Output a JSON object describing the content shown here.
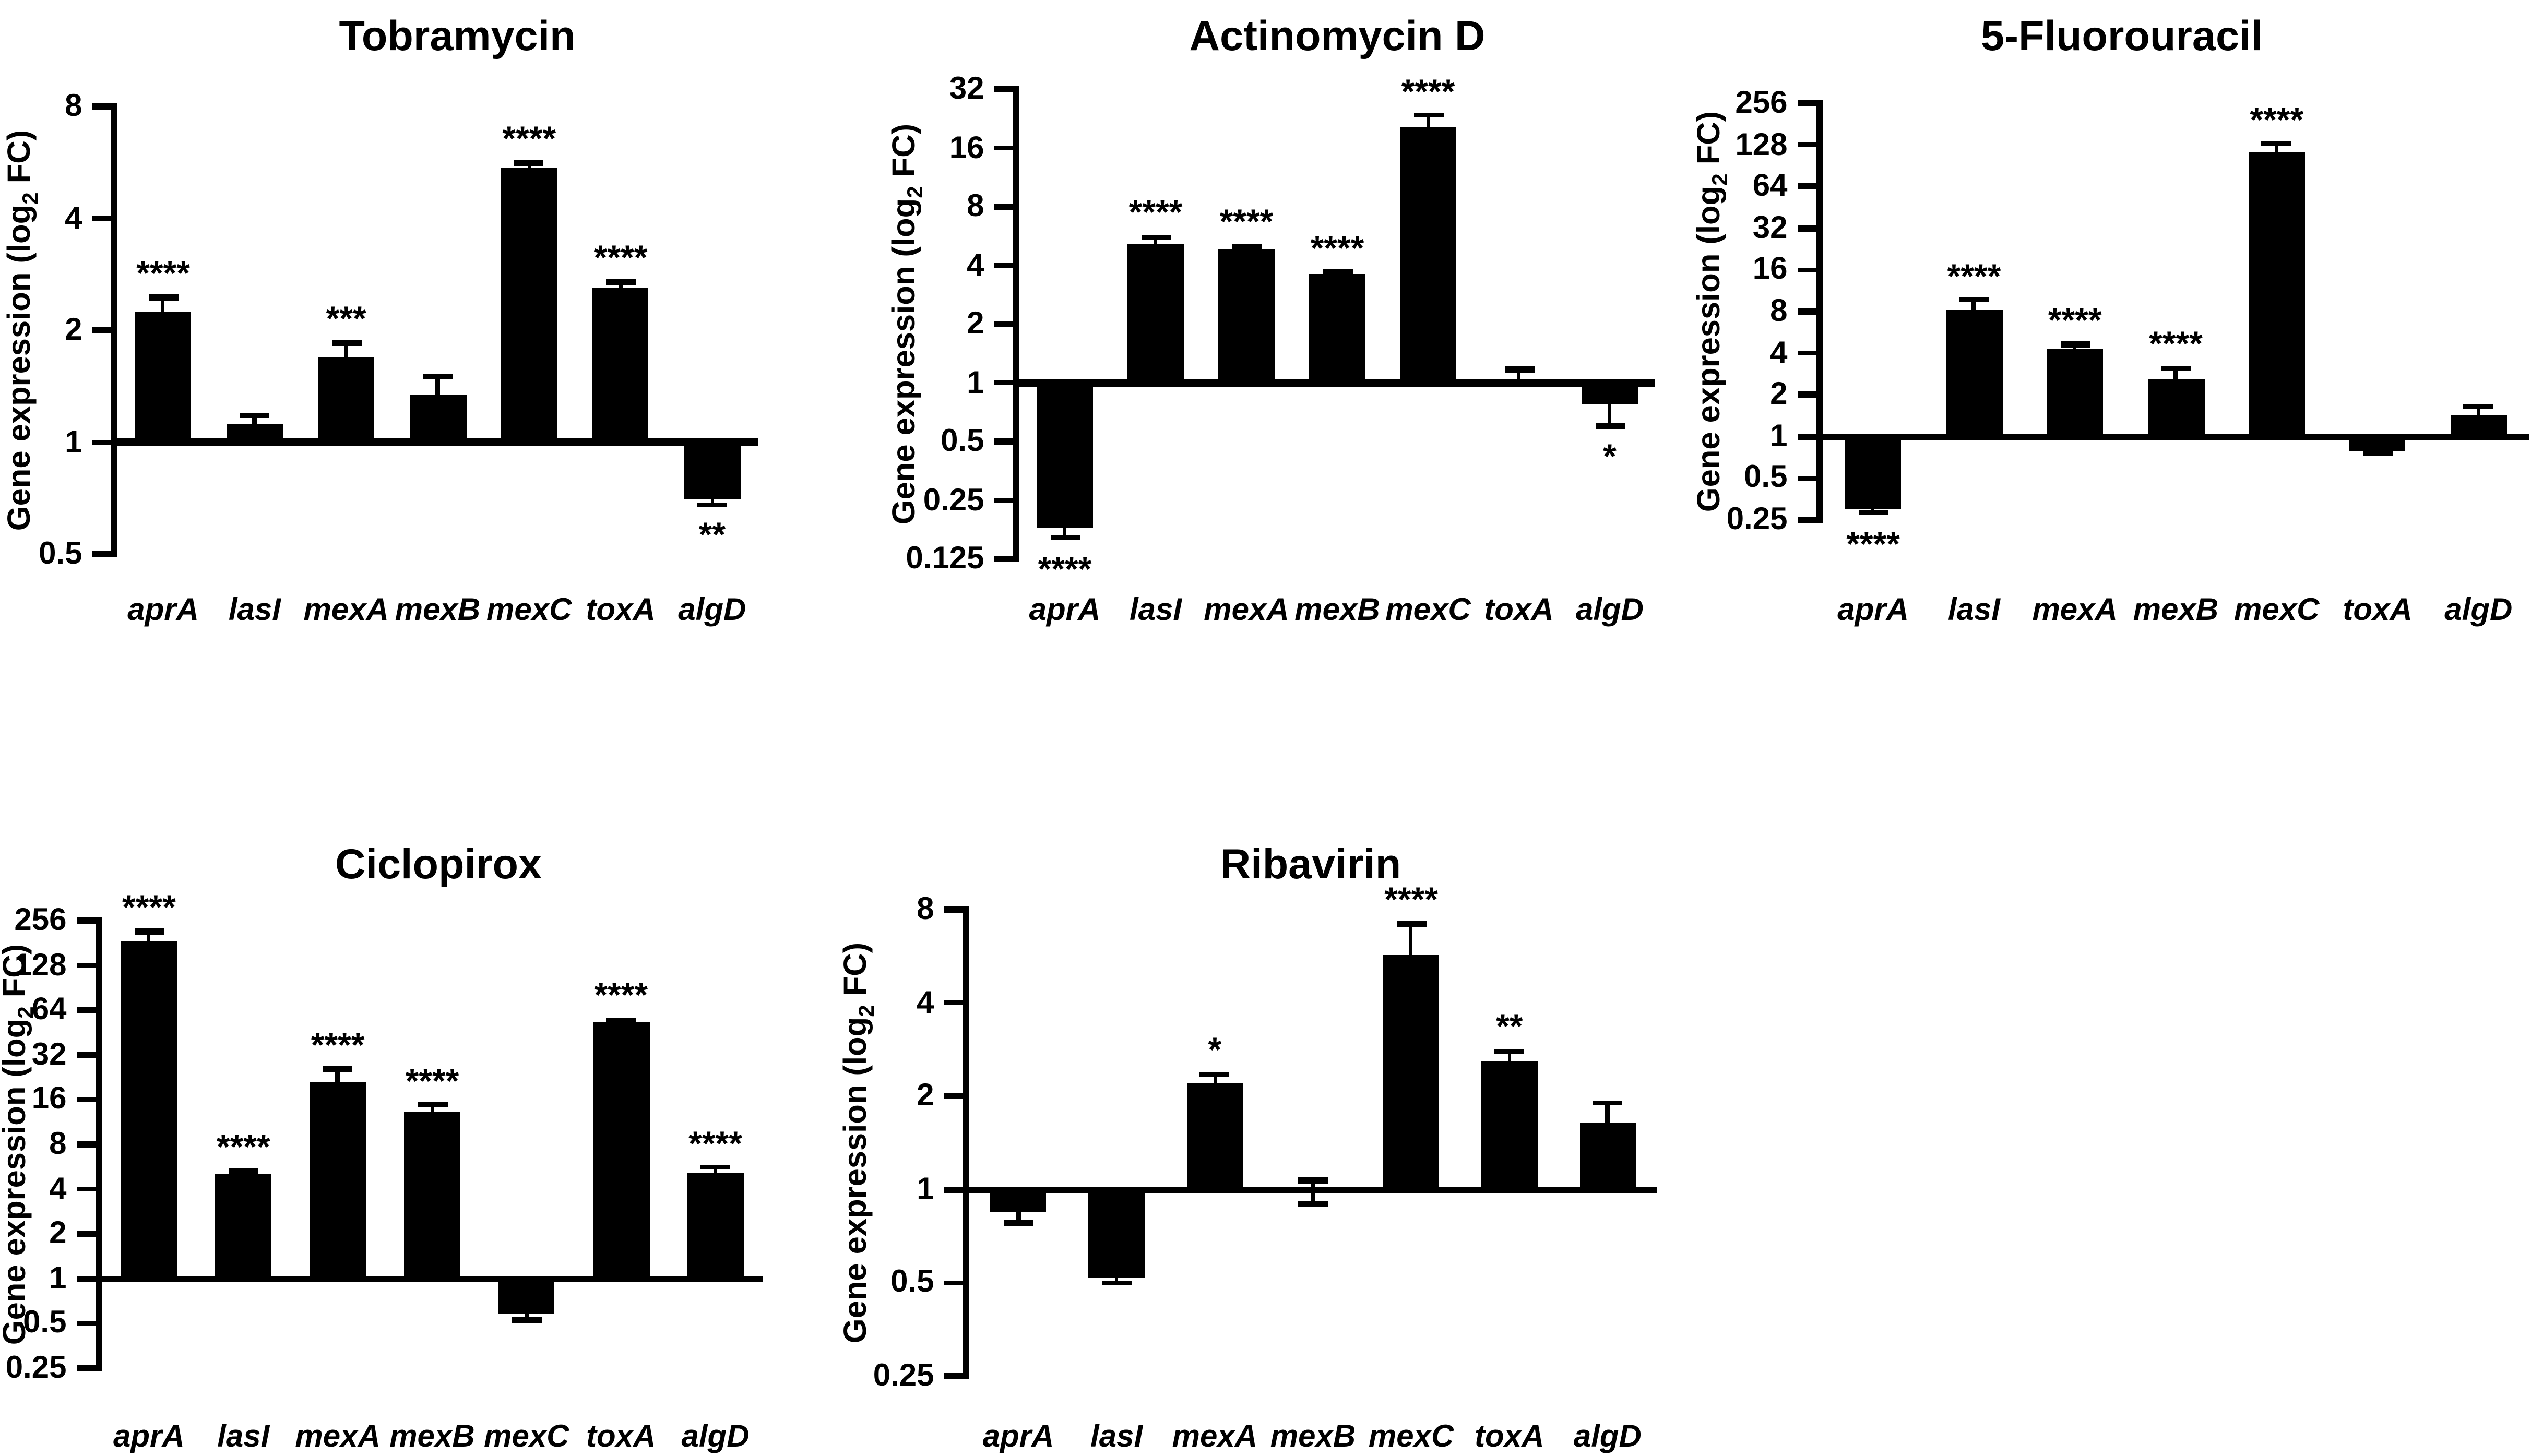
{
  "figure": {
    "background": "#ffffff",
    "bar_color": "#000000",
    "axis_color": "#000000",
    "text_color": "#000000",
    "ylabel": {
      "pre": "Gene expression (log",
      "sub": "2",
      "post": " FC)"
    }
  },
  "chart_data": [
    {
      "type": "bar",
      "title": "Tobramycin",
      "ylabel": "Gene expression (log2 FC)",
      "yscale": "log2",
      "ylim": [
        0.5,
        8
      ],
      "yticks": [
        "8",
        "4",
        "2",
        "1",
        "0.5"
      ],
      "baseline": 1,
      "grid": false,
      "categories": [
        "aprA",
        "lasI",
        "mexA",
        "mexB",
        "mexC",
        "toxA",
        "algD"
      ],
      "values": [
        2.25,
        1.12,
        1.7,
        1.35,
        5.5,
        2.6,
        0.7
      ],
      "error_high": [
        2.45,
        1.18,
        1.85,
        1.5,
        5.65,
        2.7,
        null
      ],
      "error_low": [
        null,
        null,
        null,
        null,
        null,
        null,
        0.68
      ],
      "significance": [
        "****",
        null,
        "***",
        null,
        "****",
        "****",
        "**"
      ]
    },
    {
      "type": "bar",
      "title": "Actinomycin D",
      "ylabel": "Gene expression (log2 FC)",
      "yscale": "log2",
      "ylim": [
        0.125,
        32
      ],
      "yticks": [
        "32",
        "16",
        "8",
        "4",
        "2",
        "1",
        "0.5",
        "0.25",
        "0.125"
      ],
      "baseline": 1,
      "grid": false,
      "categories": [
        "aprA",
        "lasI",
        "mexA",
        "mexB",
        "mexC",
        "toxA",
        "algD"
      ],
      "values": [
        0.18,
        5.1,
        4.85,
        3.6,
        20.5,
        1.05,
        0.78
      ],
      "error_high": [
        null,
        5.6,
        5.0,
        3.7,
        23.5,
        1.17,
        null
      ],
      "error_low": [
        0.16,
        null,
        null,
        null,
        null,
        null,
        0.6
      ],
      "significance": [
        "****",
        "****",
        "****",
        "****",
        "****",
        null,
        "*"
      ]
    },
    {
      "type": "bar",
      "title": "5-Fluorouracil",
      "ylabel": "Gene expression (log2 FC)",
      "yscale": "log2",
      "ylim": [
        0.25,
        256
      ],
      "yticks": [
        "256",
        "128",
        "64",
        "32",
        "16",
        "8",
        "4",
        "2",
        "1",
        "0.5",
        "0.25"
      ],
      "baseline": 1,
      "grid": false,
      "categories": [
        "aprA",
        "lasI",
        "mexA",
        "mexB",
        "mexC",
        "toxA",
        "algD"
      ],
      "values": [
        0.3,
        8.2,
        4.25,
        2.6,
        115,
        0.78,
        1.42
      ],
      "error_high": [
        null,
        9.7,
        4.6,
        3.1,
        131,
        null,
        1.65
      ],
      "error_low": [
        0.28,
        null,
        null,
        null,
        null,
        0.76,
        null
      ],
      "significance": [
        "****",
        "****",
        "****",
        "****",
        "****",
        null,
        null
      ]
    },
    {
      "type": "bar",
      "title": "Ciclopirox",
      "ylabel": "Gene expression (log2 FC)",
      "yscale": "log2",
      "ylim": [
        0.25,
        256
      ],
      "yticks": [
        "256",
        "128",
        "64",
        "32",
        "16",
        "8",
        "4",
        "2",
        "1",
        "0.5",
        "0.25"
      ],
      "baseline": 1,
      "grid": false,
      "categories": [
        "aprA",
        "lasI",
        "mexA",
        "mexB",
        "mexC",
        "toxA",
        "algD"
      ],
      "values": [
        185,
        5.1,
        21,
        13.4,
        0.58,
        53,
        5.2
      ],
      "error_high": [
        215,
        5.3,
        25.5,
        14.8,
        null,
        55,
        5.6
      ],
      "error_low": [
        null,
        null,
        null,
        null,
        0.53,
        null,
        null
      ],
      "significance": [
        "****",
        "****",
        "****",
        "****",
        null,
        "****",
        "****"
      ]
    },
    {
      "type": "bar",
      "title": "Ribavirin",
      "ylabel": "Gene expression (log2 FC)",
      "yscale": "log2",
      "ylim": [
        0.25,
        8
      ],
      "yticks": [
        "8",
        "4",
        "2",
        "1",
        "0.5",
        "0.25"
      ],
      "baseline": 1,
      "grid": false,
      "categories": [
        "aprA",
        "lasI",
        "mexA",
        "mexB",
        "mexC",
        "toxA",
        "algD"
      ],
      "values": [
        0.85,
        0.52,
        2.2,
        0.97,
        5.7,
        2.6,
        1.65
      ],
      "error_high": [
        null,
        null,
        2.35,
        1.07,
        7.2,
        2.8,
        1.9
      ],
      "error_low": [
        0.78,
        0.5,
        null,
        0.9,
        null,
        null,
        null
      ],
      "significance": [
        null,
        null,
        "*",
        null,
        "****",
        "**",
        null
      ]
    }
  ]
}
